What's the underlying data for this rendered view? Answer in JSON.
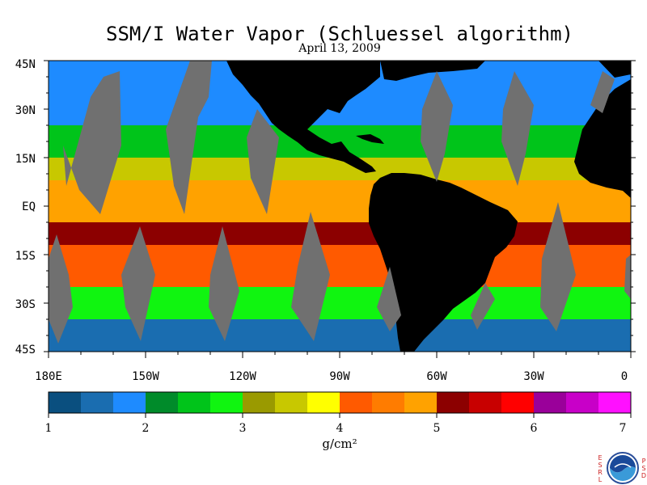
{
  "title": "SSM/I Water Vapor (Schluessel algorithm)",
  "date": "April 13, 2009",
  "latitude_labels": [
    "45N",
    "30N",
    "15N",
    "EQ",
    "15S",
    "30S",
    "45S"
  ],
  "longitude_labels": [
    "180E",
    "150W",
    "120W",
    "90W",
    "60W",
    "30W",
    "0"
  ],
  "colorbar": {
    "colors": [
      "#0a4f7f",
      "#1a6db0",
      "#1e8bff",
      "#008b2a",
      "#00c41a",
      "#10f510",
      "#9a9a00",
      "#c8c800",
      "#ffff00",
      "#ff5a00",
      "#ff7c00",
      "#ffa200",
      "#8c0000",
      "#c80000",
      "#ff0000",
      "#9a009a",
      "#c800c8",
      "#ff10ff"
    ],
    "tick_labels": [
      "1",
      "2",
      "3",
      "4",
      "5",
      "6",
      "7"
    ],
    "unit": "g/cm²"
  },
  "colors": {
    "land": "#000000",
    "missing_data": "#707070",
    "ocean_base": "#1a6db0"
  },
  "logo": {
    "name": "noaa-logo",
    "left_letters": [
      "E",
      "S",
      "R",
      "L"
    ],
    "right_letters": [
      "P",
      "S",
      "D"
    ]
  },
  "chart_data": {
    "type": "heatmap",
    "title": "SSM/I Water Vapor (Schluessel algorithm)",
    "subtitle": "April 13, 2009",
    "variable": "water vapor",
    "unit": "g/cm²",
    "x_range_lon": [
      -180,
      0
    ],
    "y_range_lat": [
      -45,
      45
    ],
    "color_scale_range": [
      1,
      7
    ],
    "latitude_ticks": [
      45,
      30,
      15,
      0,
      -15,
      -30,
      -45
    ],
    "longitude_ticks": [
      -180,
      -150,
      -120,
      -90,
      -60,
      -30,
      0
    ],
    "bands": [
      {
        "lat_range": [
          25,
          45
        ],
        "value": 1.8
      },
      {
        "lat_range": [
          15,
          25
        ],
        "value": 2.6
      },
      {
        "lat_range": [
          8,
          15
        ],
        "value": 3.6
      },
      {
        "lat_range": [
          -5,
          8
        ],
        "value": 4.8
      },
      {
        "lat_range": [
          -12,
          -5
        ],
        "value": 5.2
      },
      {
        "lat_range": [
          -25,
          -12
        ],
        "value": 4.3
      },
      {
        "lat_range": [
          -35,
          -25
        ],
        "value": 2.8
      },
      {
        "lat_range": [
          -45,
          -35
        ],
        "value": 1.6
      }
    ]
  }
}
